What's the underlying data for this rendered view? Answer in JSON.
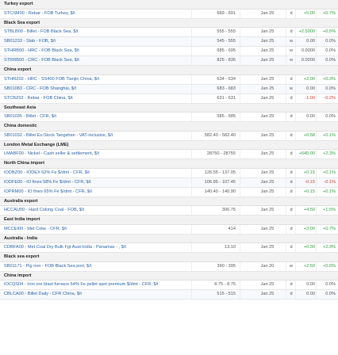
{
  "sections": [
    {
      "title": "Turkey export",
      "rows": [
        {
          "name": "STCSM00 - Rebar - FOB Turkey, $/t",
          "range": "689 - 691",
          "date": "Jan 25",
          "freq": "d",
          "change": "+5.00",
          "pct": "+0.7%",
          "trend": "pos"
        }
      ]
    },
    {
      "title": "Black Sea export",
      "rows": [
        {
          "name": "STBLB00 - Billet - FOB Black Sea, $/t",
          "range": "555 - 555",
          "date": "Jan 25",
          "freq": "d",
          "change": "+2.5000",
          "pct": "+0.5%",
          "trend": "pos"
        },
        {
          "name": "SB01233 - Slab - FOB, $/t",
          "range": "545 - 555",
          "date": "Jan 25",
          "freq": "w",
          "change": "0.00",
          "pct": "0.0%",
          "trend": "neu"
        },
        {
          "name": "STHRB00 - HRC - FOB Black Sea, $/t",
          "range": "685 - 695",
          "date": "Jan 25",
          "freq": "w",
          "change": "0.0000",
          "pct": "0.0%",
          "trend": "neu"
        },
        {
          "name": "STRRB00 - CRC - FOB Black Sea, $/t",
          "range": "825 - 835",
          "date": "Jan 25",
          "freq": "w",
          "change": "0.0000",
          "pct": "0.0%",
          "trend": "neu"
        }
      ]
    },
    {
      "title": "China export",
      "rows": [
        {
          "name": "STHRZ02 - HRC - SS400 FOB Tianjin China, $/t",
          "range": "634 - 634",
          "date": "Jan 25",
          "freq": "d",
          "change": "+2.00",
          "pct": "+0.3%",
          "trend": "pos"
        },
        {
          "name": "SB01083 - CRC - FOB Shanghai, $/t",
          "range": "683 - 683",
          "date": "Jan 25",
          "freq": "w",
          "change": "0.00",
          "pct": "0.0%",
          "trend": "neu"
        },
        {
          "name": "STCBZ02 - Rebar - FOB China, $/t",
          "range": "631 - 631",
          "date": "Jan 25",
          "freq": "d",
          "change": "-1.00",
          "pct": "-0.2%",
          "trend": "neg"
        }
      ]
    },
    {
      "title": "Southeast Asia",
      "rows": [
        {
          "name": "SB01035 - Billet - CFR, $/t",
          "range": "585 - 585",
          "date": "Jan 25",
          "freq": "d",
          "change": "0.00",
          "pct": "0.0%",
          "trend": "neu"
        }
      ]
    },
    {
      "title": "China domestic",
      "rows": [
        {
          "name": "SB01032 - Billet Ex-Stock Tangshan - VAT-inclusive, $/t",
          "range": "582.40 - 582.40",
          "date": "Jan 25",
          "freq": "d",
          "change": "+0.58",
          "pct": "+0.1%",
          "trend": "pos"
        }
      ]
    },
    {
      "title": "London Metal Exchange (LME)",
      "rows": [
        {
          "name": "LMABF00 - Nickel - Cash seller & settlement, $/t",
          "range": "28750 - 28755",
          "date": "Jan 25",
          "freq": "d",
          "change": "+645.00",
          "pct": "+2.3%",
          "trend": "pos"
        }
      ]
    },
    {
      "title": "North China import",
      "rows": [
        {
          "name": "IODBZ00 - IODEX 62% Fe $/dmt - CFR, $/t",
          "range": "126.55 - 137.05",
          "date": "Jan 25",
          "freq": "d",
          "change": "+0.15",
          "pct": "+0.1%",
          "trend": "pos"
        },
        {
          "name": "IODFE00 - IO fines 58% Fe $/dmt - CFR, $/t",
          "range": "106.95 - 107.45",
          "date": "Jan 25",
          "freq": "d",
          "change": "-0.15",
          "pct": "-0.1%",
          "trend": "neg"
        },
        {
          "name": "IOPRM00 - IO fines 65% Fe $/dmt - CFR, $/t",
          "range": "140.40 - 140.90",
          "date": "Jan 25",
          "freq": "d",
          "change": "+0.15",
          "pct": "+0.1%",
          "trend": "pos"
        }
      ]
    },
    {
      "title": "Australia export",
      "rows": [
        {
          "name": "HCCAU00 - Hard Coking Coal - FOB, $/t",
          "range": "306.75",
          "date": "Jan 25",
          "freq": "d",
          "change": "+4.50",
          "pct": "+1.5%",
          "trend": "pos"
        }
      ]
    },
    {
      "title": "East India import",
      "rows": [
        {
          "name": "MCCEI00 - Met Coke - CFR, $/t",
          "range": "414",
          "date": "Jan 25",
          "freq": "d",
          "change": "+3.00",
          "pct": "+0.7%",
          "trend": "pos"
        }
      ]
    },
    {
      "title": "Australia - India",
      "rows": [
        {
          "name": "CDBFA00 - Met Coal Dry Bulk Fgt Aust-India - Panamax - , $/t",
          "range": "13.10",
          "date": "Jan 25",
          "freq": "d",
          "change": "+0.30",
          "pct": "+2.3%",
          "trend": "pos"
        }
      ]
    },
    {
      "title": "Black sea export",
      "rows": [
        {
          "name": "SB01171 - Pig iron - FOB Black Sea port, $/t",
          "range": "390 - 395",
          "date": "Jan 20",
          "freq": "w",
          "change": "+2.50",
          "pct": "+0.6%",
          "trend": "pos"
        }
      ]
    },
    {
      "title": "China import",
      "rows": [
        {
          "name": "IOCQS04 - Iron ore blast furnace 64% Fe pellet spot premium $/dmt - CFR, $/t",
          "range": "8.75 - 8.75",
          "date": "Jan 25",
          "freq": "d",
          "change": "0.00",
          "pct": "0.0%",
          "trend": "neu"
        },
        {
          "name": "CBLCA00 - Billet Daily - CFR China, $/t",
          "range": "515 - 515",
          "date": "Jan 25",
          "freq": "d",
          "change": "0.00",
          "pct": "0.0%",
          "trend": "neu"
        }
      ]
    }
  ]
}
